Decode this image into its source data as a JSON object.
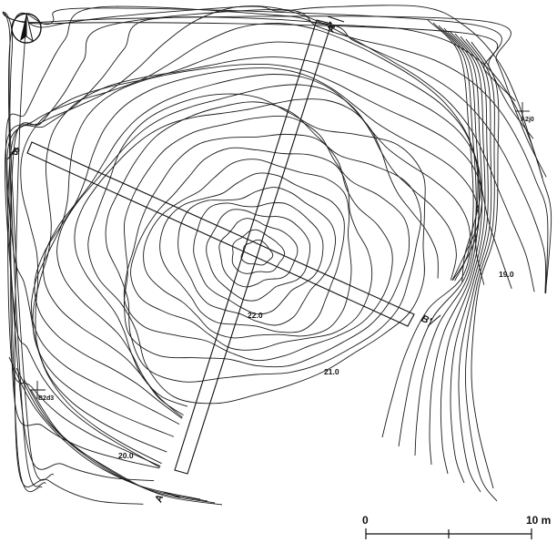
{
  "north_arrow": {
    "icon": "north-arrow-icon"
  },
  "section_labels": {
    "a_start": "A",
    "a_end": "A'",
    "b_start": "B",
    "b_end": "B'"
  },
  "contour_labels": {
    "c19": "19.0",
    "c20": "20.0",
    "c21": "21.0",
    "c22": "22.0"
  },
  "grid_points": {
    "a2j0": "A2j0",
    "b2d3": "B2d3"
  },
  "scale_bar": {
    "start": "0",
    "end": "10 m"
  }
}
